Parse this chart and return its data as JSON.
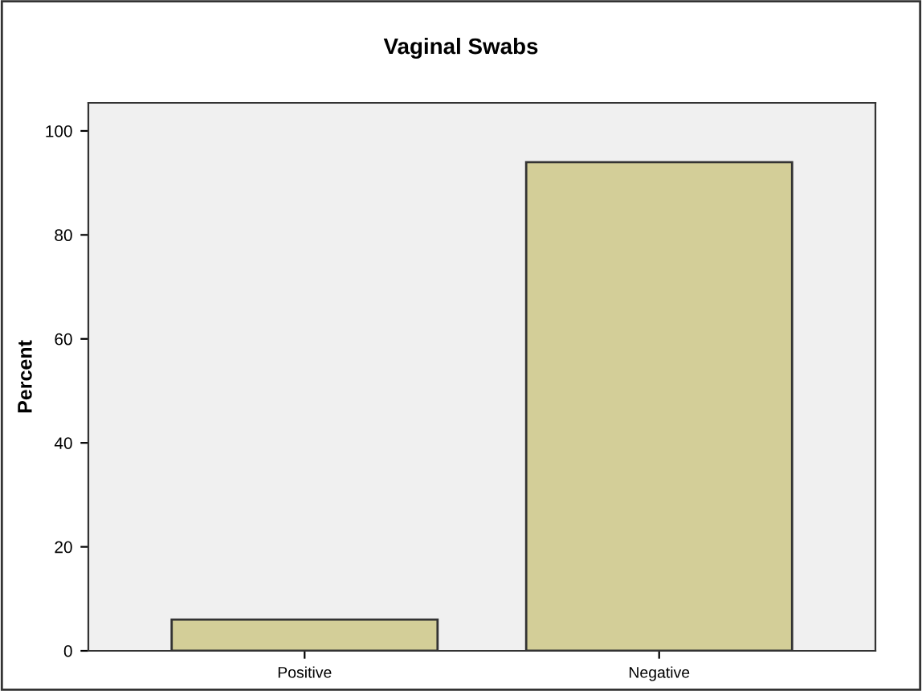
{
  "chart_data": {
    "type": "bar",
    "title": "Vaginal Swabs",
    "ylabel": "Percent",
    "categories": [
      "Positive",
      "Negative"
    ],
    "values": [
      6,
      94
    ],
    "color": "#d3ce98",
    "ylim": [
      0,
      105.4
    ],
    "yticks": [
      0,
      20,
      40,
      60,
      80,
      100
    ],
    "grid": false
  }
}
